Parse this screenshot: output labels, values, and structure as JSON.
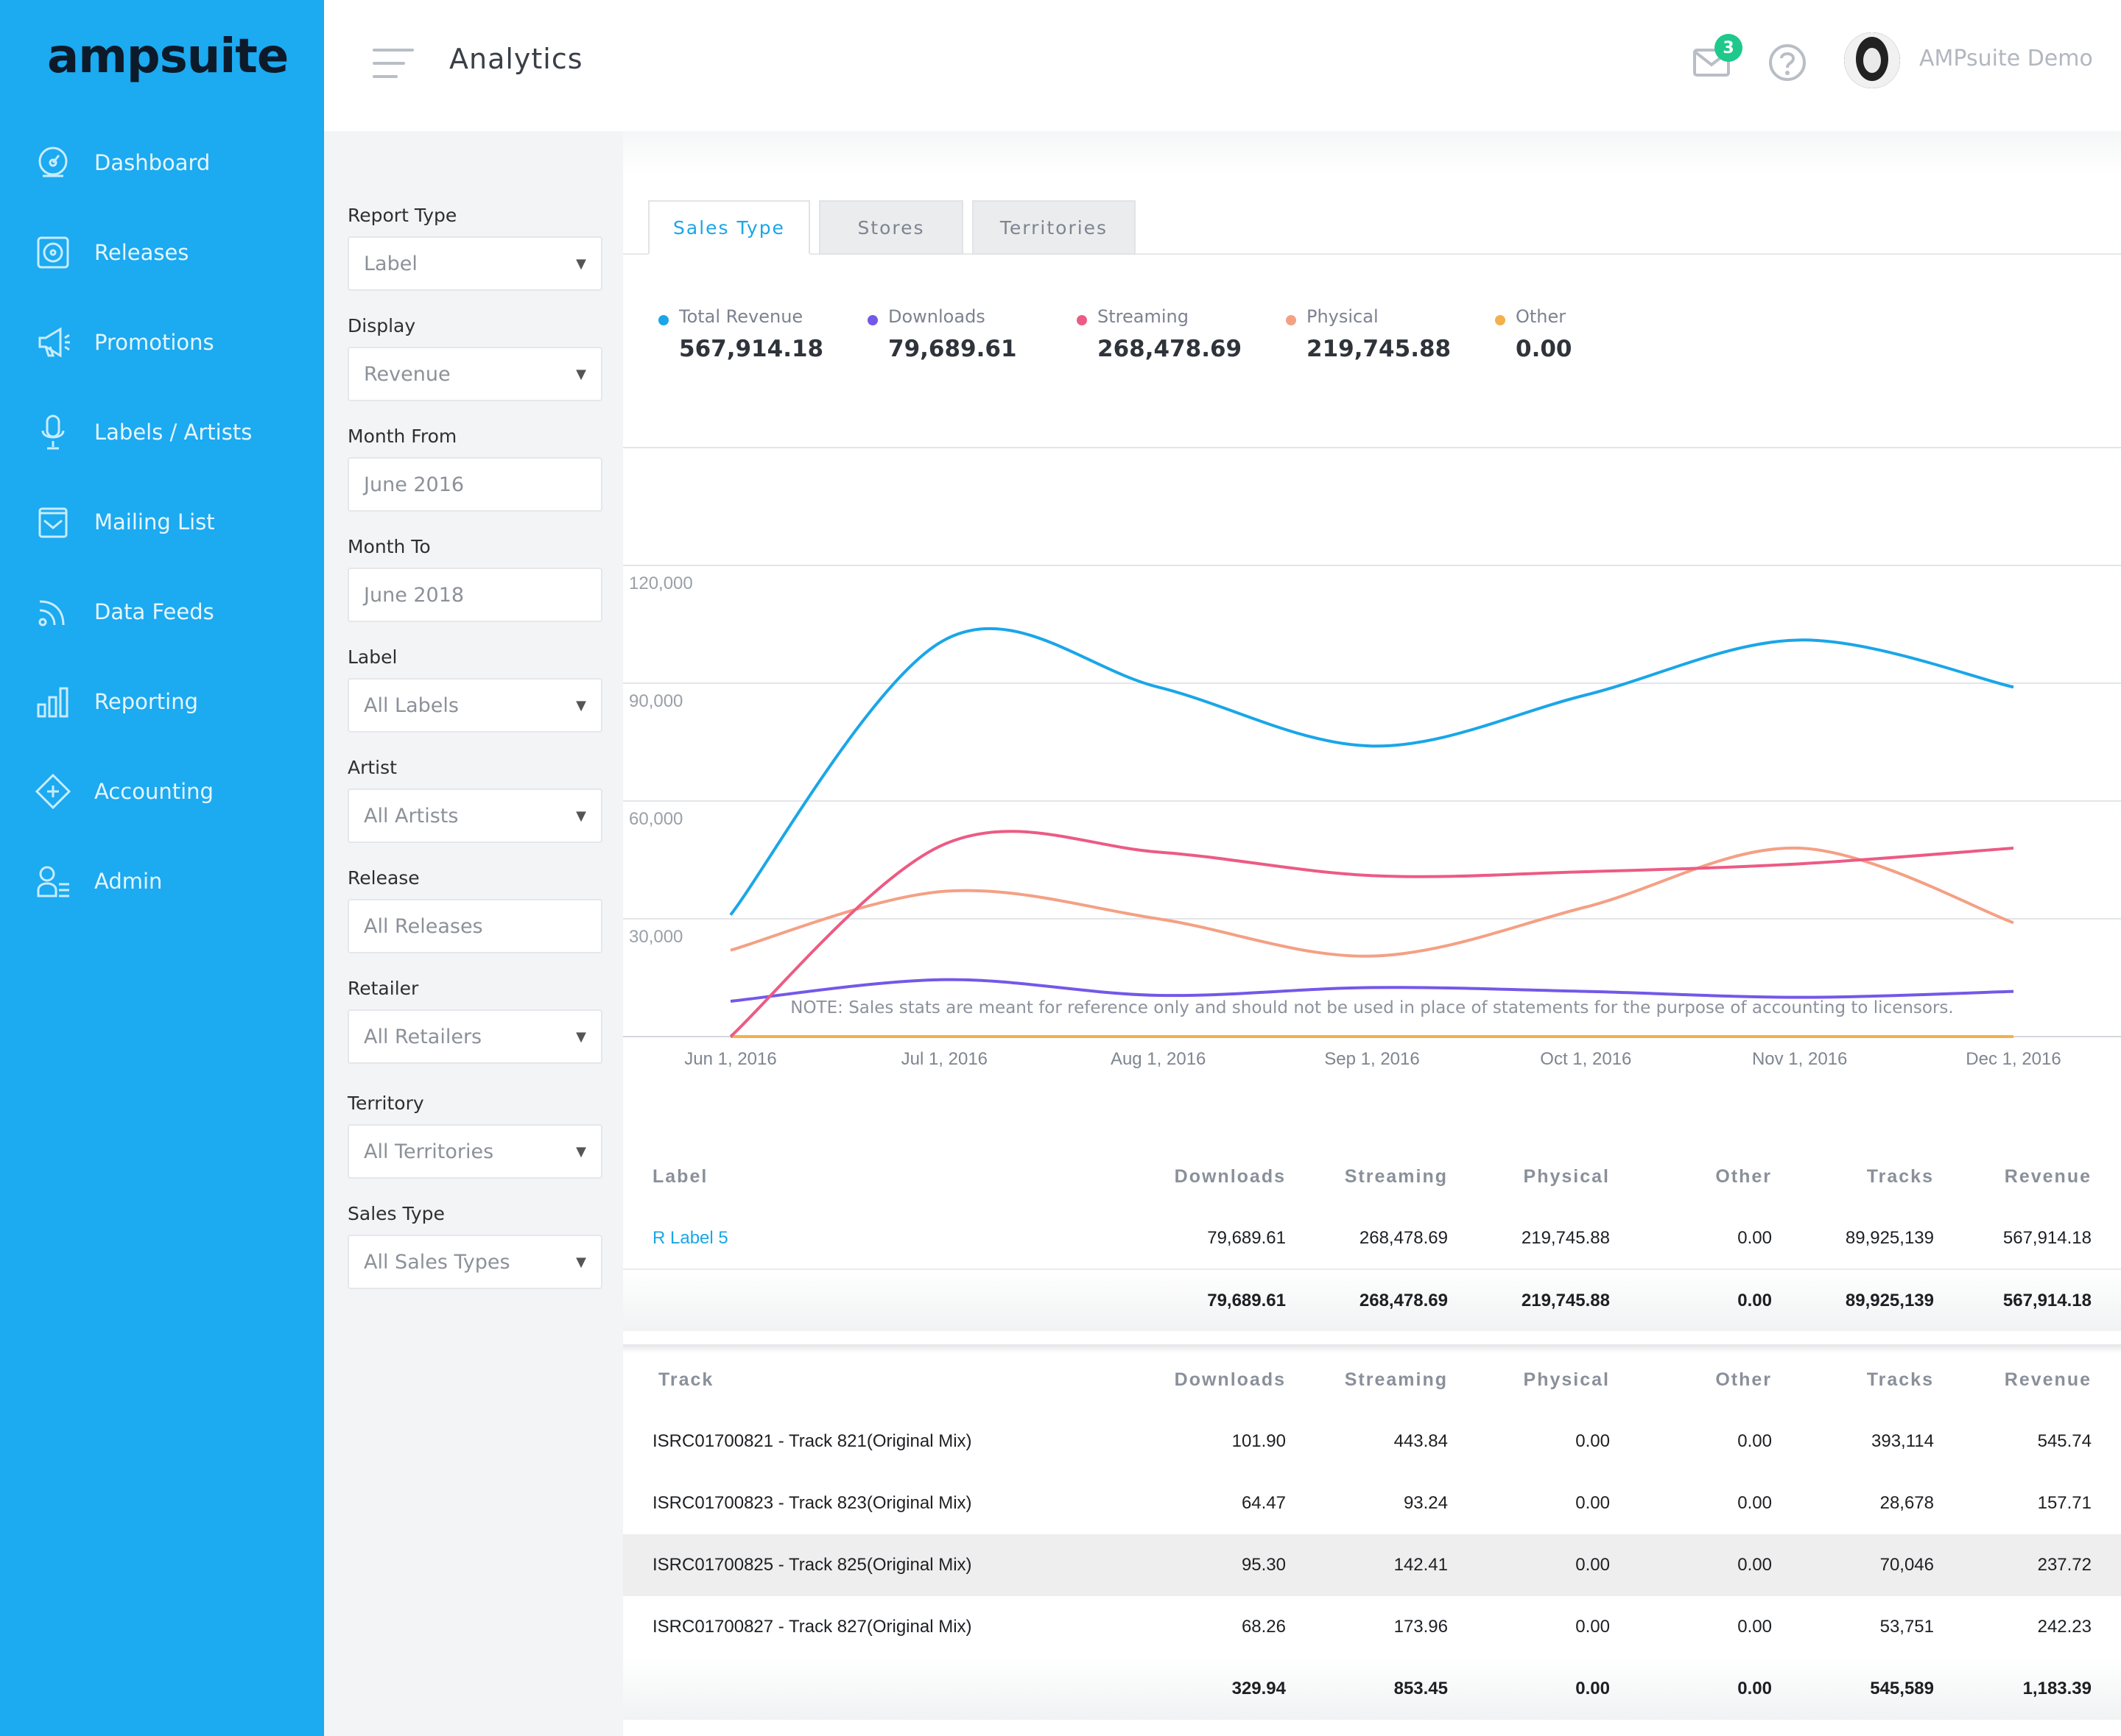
{
  "app": {
    "logo_text": "ampsuite",
    "page_title": "Analytics",
    "user_name": "AMPsuite Demo",
    "mail_badge": "3"
  },
  "colors": {
    "sidebar": "#1caaf0",
    "accent": "#1aa6e8",
    "total_revenue": "#1aa6e8",
    "downloads": "#7458e8",
    "streaming": "#ec5b84",
    "physical": "#f4a084",
    "other": "#f3b04c"
  },
  "sidebar": {
    "items": [
      {
        "label": "Dashboard",
        "icon": "dashboard-icon"
      },
      {
        "label": "Releases",
        "icon": "releases-icon"
      },
      {
        "label": "Promotions",
        "icon": "megaphone-icon"
      },
      {
        "label": "Labels / Artists",
        "icon": "microphone-icon"
      },
      {
        "label": "Mailing List",
        "icon": "mailing-list-icon"
      },
      {
        "label": "Data Feeds",
        "icon": "rss-icon"
      },
      {
        "label": "Reporting",
        "icon": "bar-chart-icon"
      },
      {
        "label": "Accounting",
        "icon": "ticket-icon"
      },
      {
        "label": "Admin",
        "icon": "admin-user-icon"
      }
    ]
  },
  "filters": {
    "report_type": {
      "label": "Report Type",
      "value": "Label"
    },
    "display": {
      "label": "Display",
      "value": "Revenue"
    },
    "month_from": {
      "label": "Month From",
      "placeholder": "June 2016"
    },
    "month_to": {
      "label": "Month To",
      "placeholder": "June 2018"
    },
    "label": {
      "label": "Label",
      "value": "All Labels"
    },
    "artist": {
      "label": "Artist",
      "value": "All Artists"
    },
    "release": {
      "label": "Release",
      "placeholder": "All Releases"
    },
    "retailer": {
      "label": "Retailer",
      "value": "All Retailers"
    },
    "territory": {
      "label": "Territory",
      "value": "All Territories"
    },
    "sales_type": {
      "label": "Sales Type",
      "value": "All Sales Types"
    }
  },
  "tabs": [
    "Sales Type",
    "Stores",
    "Territories"
  ],
  "summary": [
    {
      "label": "Total Revenue",
      "value": "567,914.18"
    },
    {
      "label": "Downloads",
      "value": "79,689.61"
    },
    {
      "label": "Streaming",
      "value": "268,478.69"
    },
    {
      "label": "Physical",
      "value": "219,745.88"
    },
    {
      "label": "Other",
      "value": "0.00"
    }
  ],
  "chart_data": {
    "type": "line",
    "x": [
      "Jun 1, 2016",
      "Jul 1, 2016",
      "Aug 1, 2016",
      "Sep 1, 2016",
      "Oct 1, 2016",
      "Nov 1, 2016",
      "Dec 1, 2016"
    ],
    "yticks": [
      "120,000",
      "90,000",
      "60,000",
      "30,000"
    ],
    "ylim": [
      0,
      120000
    ],
    "grid": true,
    "series": [
      {
        "name": "Total Revenue",
        "values": [
          31000,
          101000,
          89000,
          74000,
          87000,
          101000,
          89000
        ]
      },
      {
        "name": "Downloads",
        "values": [
          9000,
          14500,
          10500,
          12500,
          11500,
          10000,
          11500
        ]
      },
      {
        "name": "Streaming",
        "values": [
          0,
          49000,
          47000,
          41000,
          42000,
          44000,
          48000
        ]
      },
      {
        "name": "Physical",
        "values": [
          22000,
          37000,
          30000,
          20500,
          33000,
          48000,
          29000
        ]
      },
      {
        "name": "Other",
        "values": [
          0,
          0,
          0,
          0,
          0,
          0,
          0
        ]
      }
    ]
  },
  "note": "NOTE: Sales stats are meant for reference only and should not be used in place of statements for the purpose of accounting to licensors.",
  "label_table": {
    "headers": [
      "Label",
      "Downloads",
      "Streaming",
      "Physical",
      "Other",
      "Tracks",
      "Revenue"
    ],
    "rows": [
      [
        "R Label 5",
        "79,689.61",
        "268,478.69",
        "219,745.88",
        "0.00",
        "89,925,139",
        "567,914.18"
      ]
    ],
    "totals": [
      "",
      "79,689.61",
      "268,478.69",
      "219,745.88",
      "0.00",
      "89,925,139",
      "567,914.18"
    ]
  },
  "track_table": {
    "headers": [
      "Track",
      "Downloads",
      "Streaming",
      "Physical",
      "Other",
      "Tracks",
      "Revenue"
    ],
    "rows": [
      [
        "ISRC01700821 - Track 821(Original Mix)",
        "101.90",
        "443.84",
        "0.00",
        "0.00",
        "393,114",
        "545.74"
      ],
      [
        "ISRC01700823 - Track 823(Original Mix)",
        "64.47",
        "93.24",
        "0.00",
        "0.00",
        "28,678",
        "157.71"
      ],
      [
        "ISRC01700825 - Track 825(Original Mix)",
        "95.30",
        "142.41",
        "0.00",
        "0.00",
        "70,046",
        "237.72"
      ],
      [
        "ISRC01700827 - Track 827(Original Mix)",
        "68.26",
        "173.96",
        "0.00",
        "0.00",
        "53,751",
        "242.23"
      ]
    ],
    "totals": [
      "",
      "329.94",
      "853.45",
      "0.00",
      "0.00",
      "545,589",
      "1,183.39"
    ]
  }
}
